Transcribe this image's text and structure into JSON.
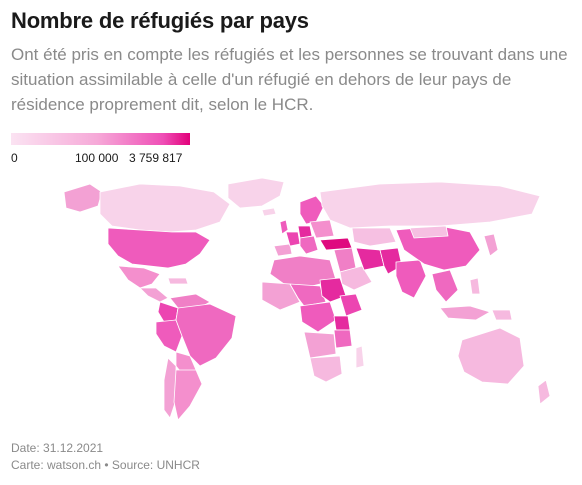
{
  "header": {
    "title": "Nombre de réfugiés par pays",
    "subtitle": "Ont été pris en compte les réfugiés et les personnes se trouvant dans une situation assimilable à celle d'un réfugié en dehors de leur pays de résidence proprement dit, selon le HCR."
  },
  "legend": {
    "min_label": "0",
    "mid_label": "100 000",
    "max_label": "3 759 817",
    "colors": [
      "#fbe3f2",
      "#f6a9d8",
      "#ef4eb6",
      "#e2007a"
    ]
  },
  "map": {
    "regions": [
      {
        "name": "Canada",
        "level": "light"
      },
      {
        "name": "Greenland",
        "level": "light"
      },
      {
        "name": "United States",
        "level": "medium"
      },
      {
        "name": "Mexico",
        "level": "medium-light"
      },
      {
        "name": "Colombia",
        "level": "strong"
      },
      {
        "name": "Peru",
        "level": "medium"
      },
      {
        "name": "Brazil",
        "level": "medium"
      },
      {
        "name": "Argentina",
        "level": "medium-light"
      },
      {
        "name": "Russia",
        "level": "light"
      },
      {
        "name": "Germany",
        "level": "strong"
      },
      {
        "name": "Turkey",
        "level": "max"
      },
      {
        "name": "Iran",
        "level": "strong"
      },
      {
        "name": "Pakistan",
        "level": "strong"
      },
      {
        "name": "China",
        "level": "medium"
      },
      {
        "name": "India",
        "level": "medium"
      },
      {
        "name": "Uganda",
        "level": "strong"
      },
      {
        "name": "Sudan",
        "level": "strong"
      },
      {
        "name": "Australia",
        "level": "light"
      }
    ]
  },
  "footer": {
    "date": "Date: 31.12.2021",
    "source": "Carte: watson.ch • Source: UNHCR"
  }
}
